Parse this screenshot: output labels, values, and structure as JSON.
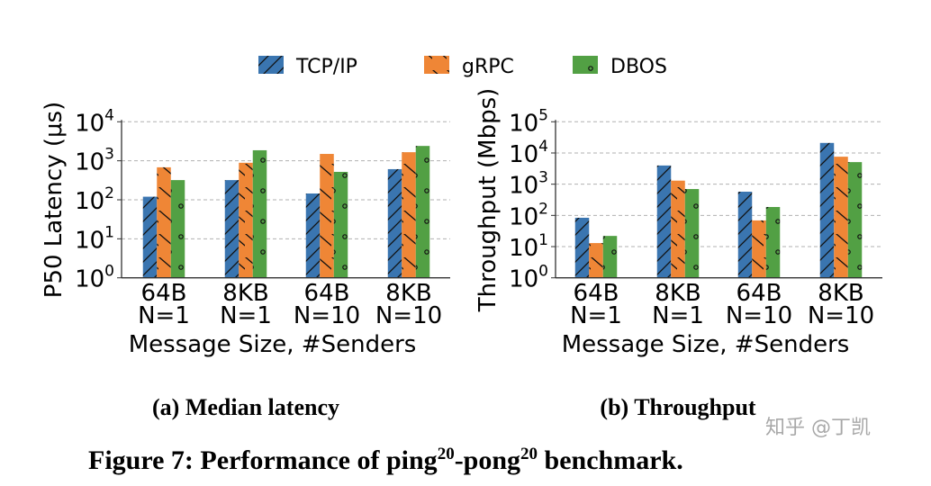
{
  "figure_caption": "Figure 7: Performance of ping",
  "figure_caption_sup1": "20",
  "figure_caption_mid": "-pong",
  "figure_caption_sup2": "20",
  "figure_caption_end": " benchmark.",
  "watermark": "知乎 @丁凯",
  "legend": [
    {
      "name": "TCP/IP",
      "color": "#3a75b0",
      "pattern": "hatch-forward"
    },
    {
      "name": "gRPC",
      "color": "#ef8636",
      "pattern": "hatch-back"
    },
    {
      "name": "DBOS",
      "color": "#52a044",
      "pattern": "dots"
    }
  ],
  "chart_data": [
    {
      "type": "bar",
      "subcaption": "(a) Median latency",
      "ylabel": "P50 Latency (μs)",
      "xlabel": "Message Size, #Senders",
      "yscale": "log",
      "ylim": [
        1,
        10000
      ],
      "yticks": [
        {
          "base": "10",
          "exp": "0"
        },
        {
          "base": "10",
          "exp": "1"
        },
        {
          "base": "10",
          "exp": "2"
        },
        {
          "base": "10",
          "exp": "3"
        },
        {
          "base": "10",
          "exp": "4"
        }
      ],
      "grid": true,
      "categories": [
        [
          "64B",
          "N=1"
        ],
        [
          "8KB",
          "N=1"
        ],
        [
          "64B",
          "N=10"
        ],
        [
          "8KB",
          "N=10"
        ]
      ],
      "series": [
        {
          "name": "TCP/IP",
          "values": [
            120,
            320,
            145,
            610
          ]
        },
        {
          "name": "gRPC",
          "values": [
            680,
            890,
            1500,
            1660
          ]
        },
        {
          "name": "DBOS",
          "values": [
            320,
            1860,
            520,
            2400
          ]
        }
      ]
    },
    {
      "type": "bar",
      "subcaption": "(b) Throughput",
      "ylabel": "Throughput (Mbps)",
      "xlabel": "Message Size, #Senders",
      "yscale": "log",
      "ylim": [
        1,
        100000
      ],
      "yticks": [
        {
          "base": "10",
          "exp": "0"
        },
        {
          "base": "10",
          "exp": "1"
        },
        {
          "base": "10",
          "exp": "2"
        },
        {
          "base": "10",
          "exp": "3"
        },
        {
          "base": "10",
          "exp": "4"
        },
        {
          "base": "10",
          "exp": "5"
        }
      ],
      "grid": true,
      "categories": [
        [
          "64B",
          "N=1"
        ],
        [
          "8KB",
          "N=1"
        ],
        [
          "64B",
          "N=10"
        ],
        [
          "8KB",
          "N=10"
        ]
      ],
      "series": [
        {
          "name": "TCP/IP",
          "values": [
            84,
            3970,
            575,
            21000
          ]
        },
        {
          "name": "gRPC",
          "values": [
            13,
            1300,
            69,
            7600
          ]
        },
        {
          "name": "DBOS",
          "values": [
            22,
            700,
            186,
            5100
          ]
        }
      ]
    }
  ]
}
